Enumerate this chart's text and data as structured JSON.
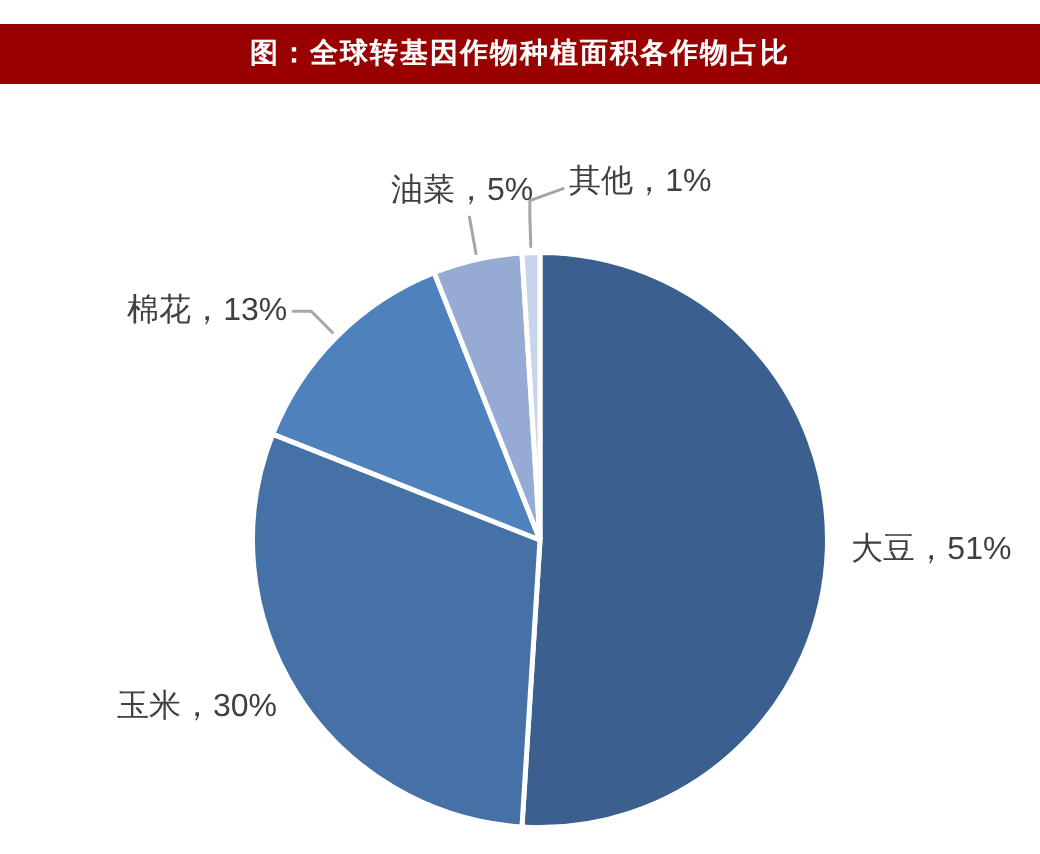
{
  "chart_data": {
    "type": "pie",
    "title": "图：全球转基因作物种植面积各作物占比",
    "categories": [
      "大豆",
      "玉米",
      "棉花",
      "油菜",
      "其他"
    ],
    "values": [
      51,
      30,
      13,
      5,
      1
    ],
    "value_labels": [
      "51%",
      "30%",
      "13%",
      "5%",
      "1%"
    ],
    "colors": [
      "#3b5f8e",
      "#4571a7",
      "#4f81bd",
      "#95abd3",
      "#c7d4ea"
    ]
  }
}
